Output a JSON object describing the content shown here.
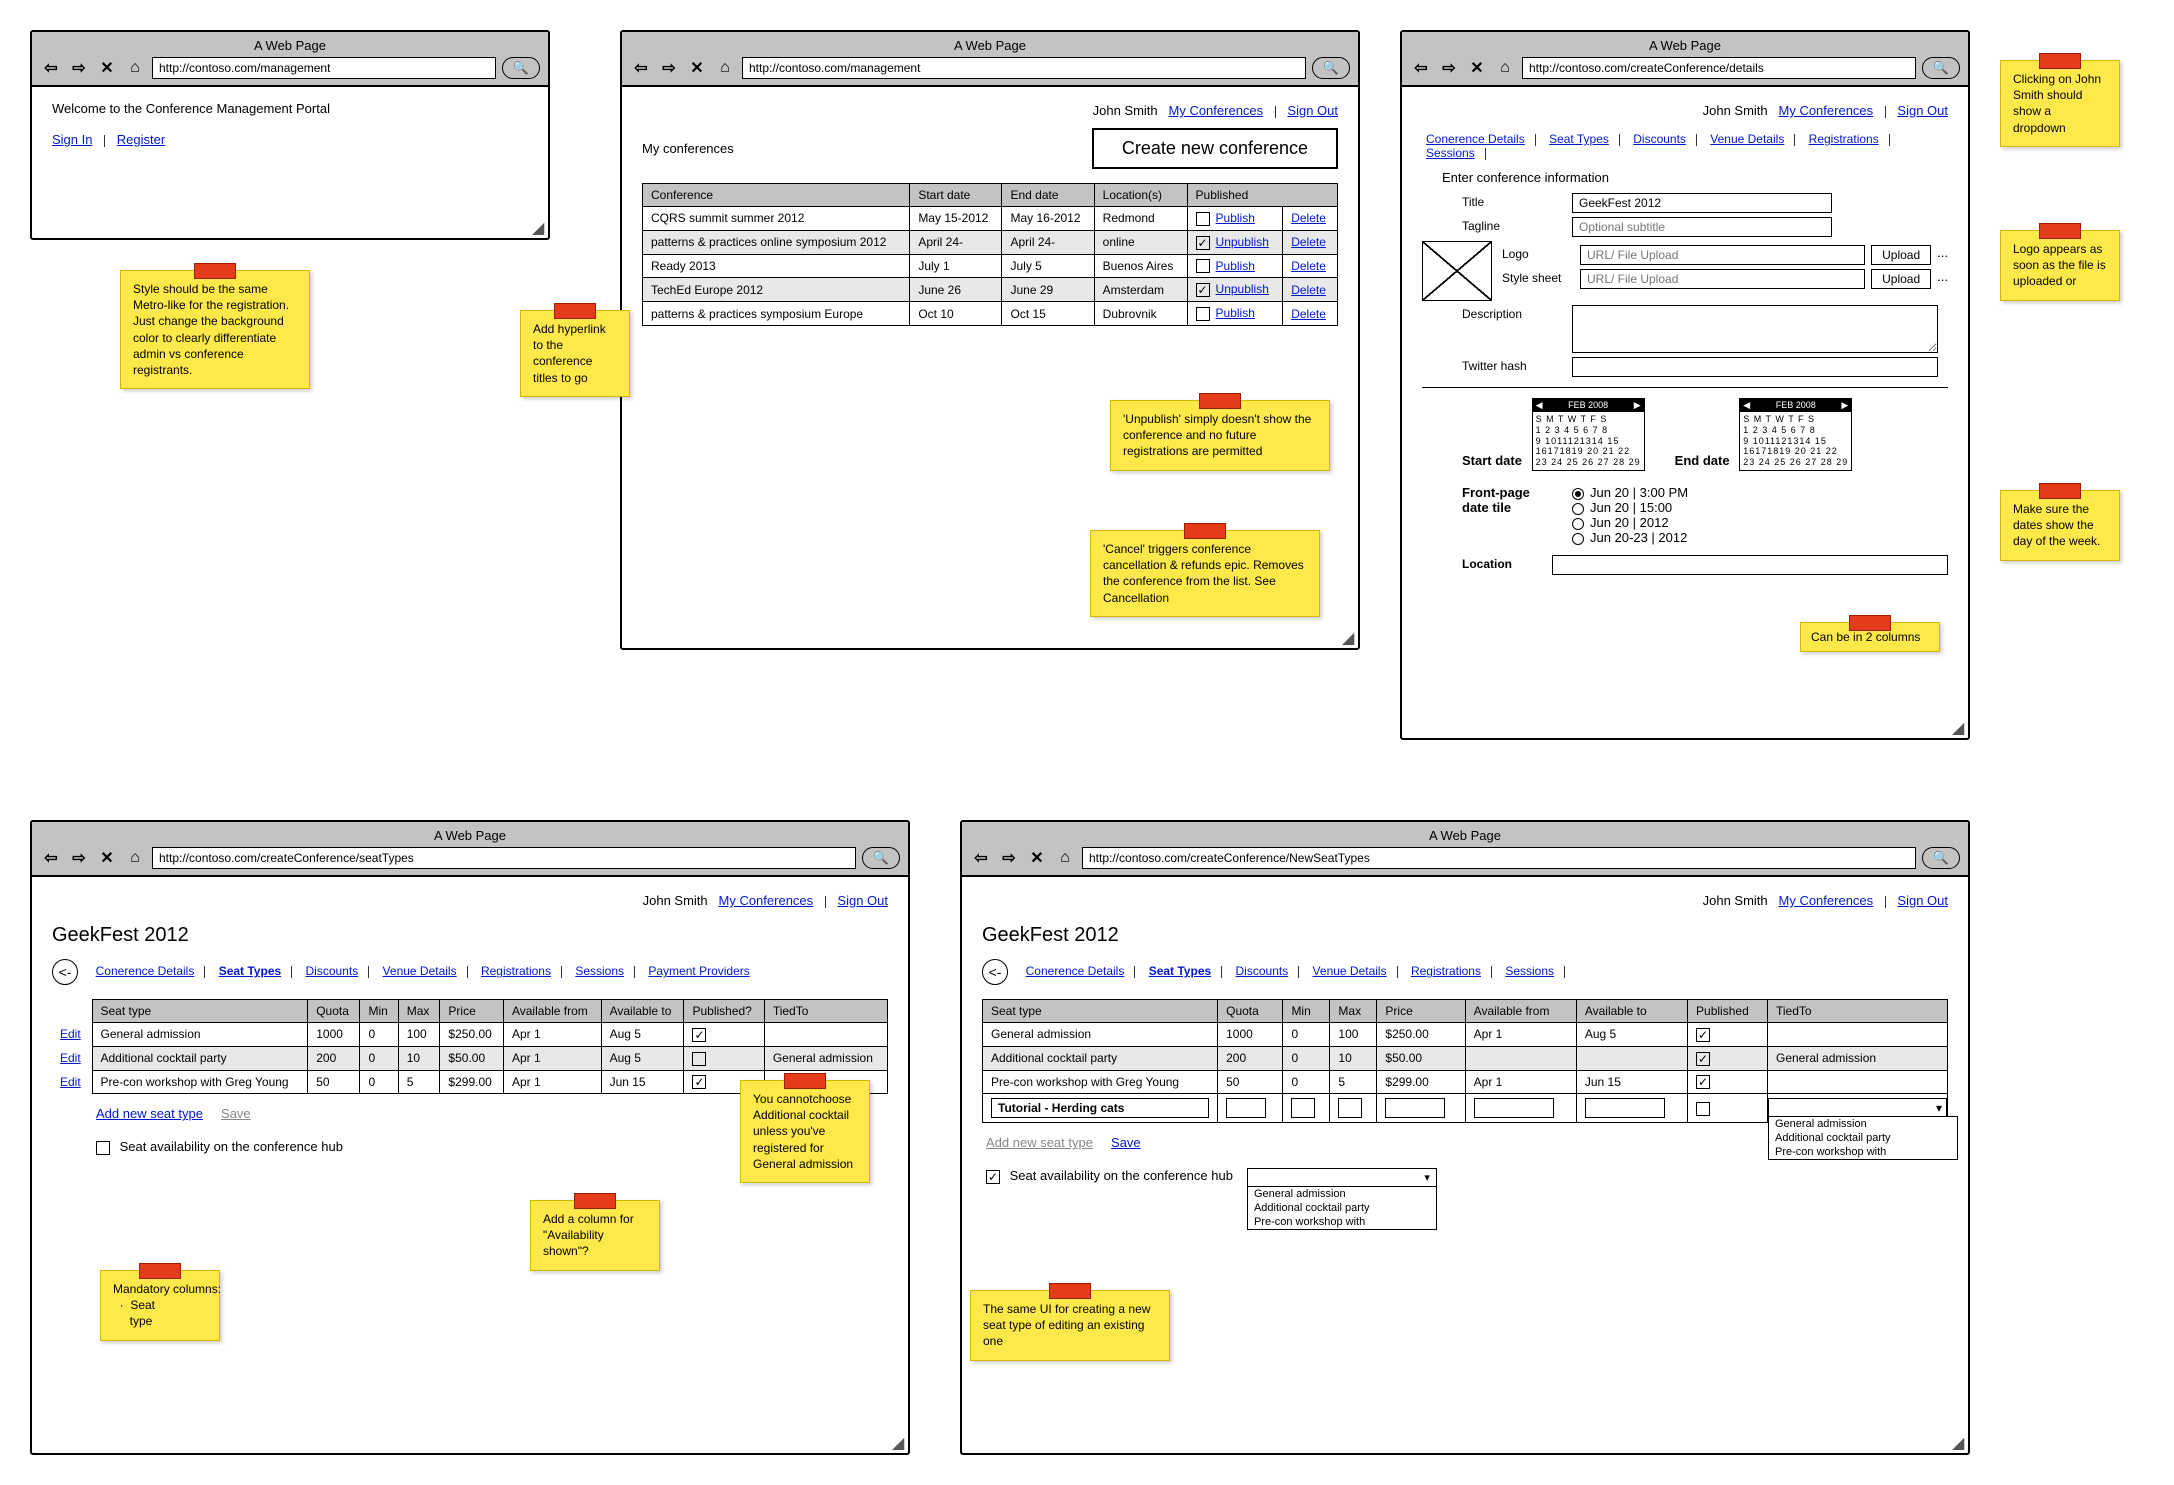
{
  "browser_title": "A Web Page",
  "urls": {
    "b1": "http://contoso.com/management",
    "b2": "http://contoso.com/management",
    "b3": "http://contoso.com/createConference/details",
    "b4": "http://contoso.com/createConference/seatTypes",
    "b5": "http://contoso.com/createConference/NewSeatTypes"
  },
  "user": {
    "name": "John Smith",
    "my_conf": "My Conferences",
    "sign_out": "Sign Out"
  },
  "b1": {
    "welcome": "Welcome to the Conference Management Portal",
    "sign_in": "Sign In",
    "register": "Register"
  },
  "b2": {
    "heading": "My conferences",
    "create_btn": "Create new conference",
    "cols": {
      "c0": "Conference",
      "c1": "Start date",
      "c2": "End date",
      "c3": "Location(s)",
      "c4": "Published"
    },
    "rows": [
      {
        "name": "CQRS summit summer 2012",
        "start": "May 15-2012",
        "end": "May 16-2012",
        "loc": "Redmond",
        "pub": false,
        "act1": "Publish",
        "act2": "Delete"
      },
      {
        "name": "patterns & practices online symposium 2012",
        "start": "April 24-",
        "end": "April 24-",
        "loc": "online",
        "pub": true,
        "act1": "Unpublish",
        "act2": "Delete"
      },
      {
        "name": "Ready 2013",
        "start": "July 1",
        "end": "July 5",
        "loc": "Buenos Aires",
        "pub": false,
        "act1": "Publish",
        "act2": "Delete"
      },
      {
        "name": "TechEd Europe 2012",
        "start": "June 26",
        "end": "June 29",
        "loc": "Amsterdam",
        "pub": true,
        "act1": "Unpublish",
        "act2": "Delete"
      },
      {
        "name": "patterns & practices symposium Europe",
        "start": "Oct 10",
        "end": "Oct 15",
        "loc": "Dubrovnik",
        "pub": false,
        "act1": "Publish",
        "act2": "Delete"
      }
    ]
  },
  "b3": {
    "tabs": {
      "t0": "Conerence Details",
      "t1": "Seat Types",
      "t2": "Discounts",
      "t3": "Venue Details",
      "t4": "Registrations",
      "t5": "Sessions"
    },
    "form": {
      "intro": "Enter conference information",
      "title_lbl": "Title",
      "title_val": "GeekFest 2012",
      "tagline_lbl": "Tagline",
      "tagline_ph": "Optional subtitle",
      "logo_lbl": "Logo",
      "logo_ph": "URL/ File Upload",
      "upload_btn": "Upload",
      "dots": "...",
      "style_lbl": "Style sheet",
      "style_ph": "URL/ File Upload",
      "desc_lbl": "Description",
      "twitter_lbl": "Twitter hash",
      "start_lbl": "Start date",
      "end_lbl": "End date",
      "cal_head": "FEB 2008",
      "cal_days": "S M T W T F S",
      "cal_w1": "1 2 3 4 5 6 7 8",
      "cal_w2": "9 1011121314 15",
      "cal_w3": "16171819 20 21 22",
      "cal_w4": "23 24 25 26 27 28 29",
      "fp_lbl": "Front-page date tile",
      "r1": "Jun 20 | 3:00 PM",
      "r2": "Jun 20 | 15:00",
      "r3": "Jun 20 | 2012",
      "r4": "Jun 20-23 | 2012",
      "loc_lbl": "Location"
    }
  },
  "b4": {
    "page_title": "GeekFest 2012",
    "tabs": {
      "t0": "Conerence Details",
      "t1": "Seat Types",
      "t2": "Discounts",
      "t3": "Venue Details",
      "t4": "Registrations",
      "t5": "Sessions",
      "t6": "Payment Providers"
    },
    "cols": {
      "c0": "Seat type",
      "c1": "Quota",
      "c2": "Min",
      "c3": "Max",
      "c4": "Price",
      "c5": "Available from",
      "c6": "Available to",
      "c7": "Published?",
      "c8": "TiedTo"
    },
    "edit": "Edit",
    "rows": [
      {
        "name": "General admission",
        "quota": "1000",
        "min": "0",
        "max": "100",
        "price": "$250.00",
        "from": "Apr 1",
        "to": "Aug 5",
        "pub": true,
        "tied": ""
      },
      {
        "name": "Additional cocktail party",
        "quota": "200",
        "min": "0",
        "max": "10",
        "price": "$50.00",
        "from": "Apr 1",
        "to": "Aug 5",
        "pub": false,
        "tied": "General admission"
      },
      {
        "name": "Pre-con workshop with Greg Young",
        "quota": "50",
        "min": "0",
        "max": "5",
        "price": "$299.00",
        "from": "Apr 1",
        "to": "Jun 15",
        "pub": true,
        "tied": ""
      }
    ],
    "add_link": "Add new seat type",
    "save_link": "Save",
    "avail_lbl": "Seat availability on the conference hub"
  },
  "b5": {
    "page_title": "GeekFest 2012",
    "tabs": {
      "t0": "Conerence Details",
      "t1": "Seat Types",
      "t2": "Discounts",
      "t3": "Venue Details",
      "t4": "Registrations",
      "t5": "Sessions"
    },
    "cols": {
      "c0": "Seat type",
      "c1": "Quota",
      "c2": "Min",
      "c3": "Max",
      "c4": "Price",
      "c5": "Available from",
      "c6": "Available to",
      "c7": "Published",
      "c8": "TiedTo"
    },
    "rows": [
      {
        "name": "General admission",
        "quota": "1000",
        "min": "0",
        "max": "100",
        "price": "$250.00",
        "from": "Apr 1",
        "to": "Aug 5",
        "pub": true,
        "tied": ""
      },
      {
        "name": "Additional cocktail party",
        "quota": "200",
        "min": "0",
        "max": "10",
        "price": "$50.00",
        "from": "",
        "to": "",
        "pub": true,
        "tied": "General admission"
      },
      {
        "name": "Pre-con workshop with Greg Young",
        "quota": "50",
        "min": "0",
        "max": "5",
        "price": "$299.00",
        "from": "Apr 1",
        "to": "Jun 15",
        "pub": true,
        "tied": ""
      }
    ],
    "new_row_val": "Tutorial - Herding cats",
    "add_link": "Add new seat type",
    "save_link": "Save",
    "avail_lbl": "Seat availability on the conference hub",
    "drop_opts": {
      "o0": "General admission",
      "o1": "Additional cocktail party",
      "o2": "Pre-con workshop with"
    },
    "tied_drop": {
      "o0": "General admission",
      "o1": "Additional cocktail party",
      "o2": "Pre-con workshop with"
    }
  },
  "notes": {
    "n1": "Style should be the same Metro-like for the registration. Just change the background color to clearly differentiate admin vs conference registrants.",
    "n2": "Add hyperlink to the conference titles to go",
    "n3": "'Unpublish' simply doesn't show the conference and no future registrations are permitted",
    "n4": "'Cancel' triggers conference cancellation & refunds epic. Removes the conference from the list. See Cancellation",
    "n5": "Clicking on John Smith should show a dropdown",
    "n6": "Logo appears as soon as the file is uploaded or",
    "n7": "Make sure the dates show the day of the week.",
    "n8": "Can be in 2 columns",
    "n9": "Mandatory columns:\n  ·  Seat\n     type",
    "n10": "Add a column for \"Availability shown\"?",
    "n11": "You cannotchoose Additional cocktail unless you've registered for General admission",
    "n12": "The same UI for creating a new seat type of editing an existing one"
  }
}
